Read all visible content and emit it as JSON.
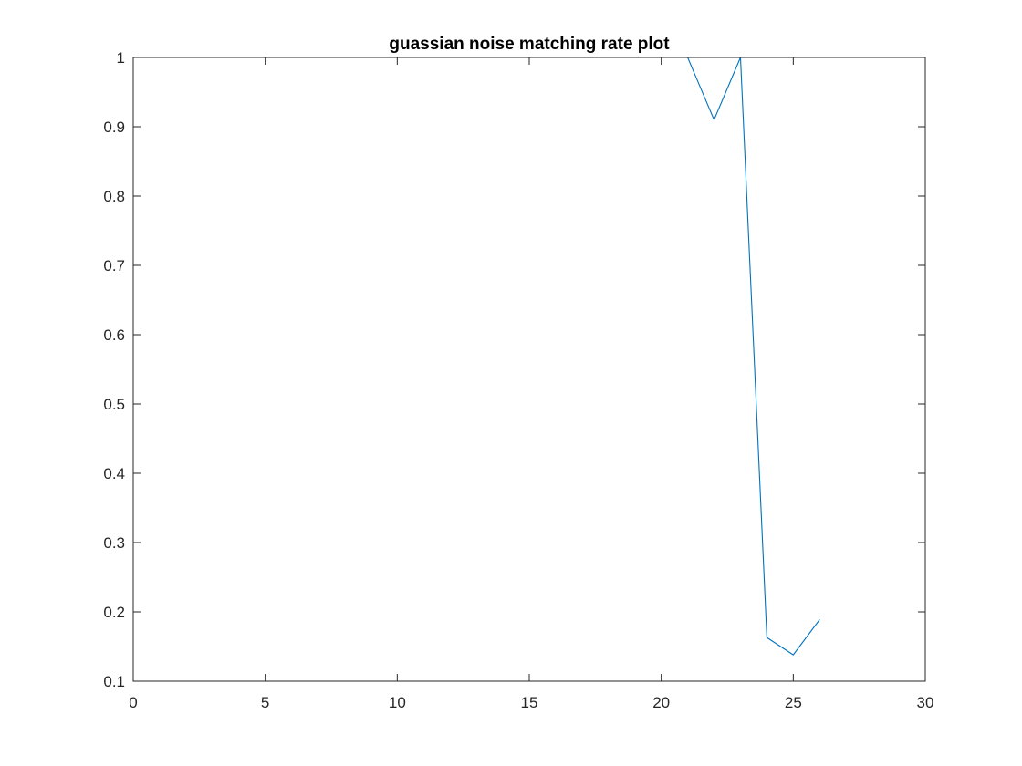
{
  "chart_data": {
    "type": "line",
    "title": "guassian noise matching rate plot",
    "xlabel": "",
    "ylabel": "",
    "xlim": [
      0,
      30
    ],
    "ylim": [
      0.1,
      1
    ],
    "x_ticks": [
      0,
      5,
      10,
      15,
      20,
      25,
      30
    ],
    "y_ticks": [
      0.1,
      0.2,
      0.3,
      0.4,
      0.5,
      0.6,
      0.7,
      0.8,
      0.9,
      1
    ],
    "x_tick_labels": [
      "0",
      "5",
      "10",
      "15",
      "20",
      "25",
      "30"
    ],
    "y_tick_labels": [
      "0.1",
      "0.2",
      "0.3",
      "0.4",
      "0.5",
      "0.6",
      "0.7",
      "0.8",
      "0.9",
      "1"
    ],
    "grid": false,
    "box": true,
    "series": [
      {
        "color": "#0072BD",
        "x": [
          1,
          2,
          3,
          4,
          5,
          6,
          7,
          8,
          9,
          10,
          11,
          12,
          13,
          14,
          15,
          16,
          17,
          18,
          19,
          20,
          21,
          22,
          23,
          24,
          25,
          26
        ],
        "y": [
          1,
          1,
          1,
          1,
          1,
          1,
          1,
          1,
          1,
          1,
          1,
          1,
          1,
          1,
          1,
          1,
          1,
          1,
          1,
          1,
          1,
          0.91,
          1,
          0.163,
          0.138,
          0.189
        ]
      }
    ]
  }
}
